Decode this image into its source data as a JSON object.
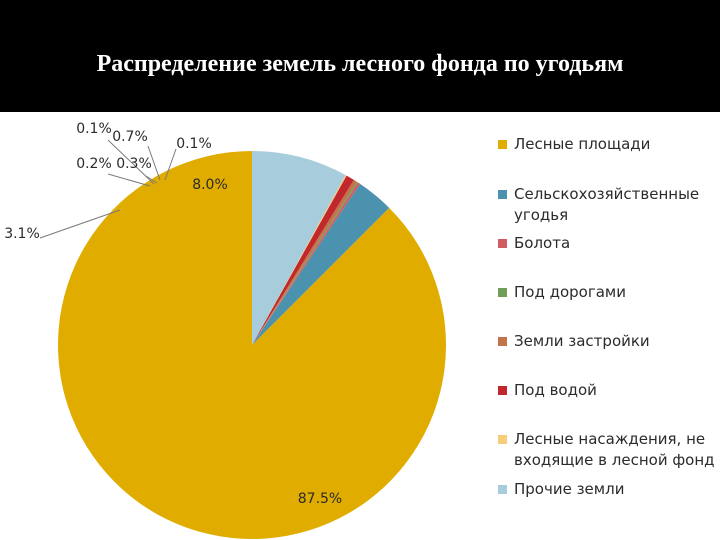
{
  "title": "Распределение земель лесного фонда по угодьям",
  "chart_data": {
    "type": "pie",
    "title": "Распределение земель лесного фонда по угодьям",
    "legend_position": "right",
    "start_angle_deg": 0,
    "direction": "clockwise",
    "slices": [
      {
        "label": "Лесные площади",
        "value": 87.5,
        "display": "87.5%",
        "color": "#E0AC00"
      },
      {
        "label": "Сельскохозяйственные угодья",
        "value": 3.1,
        "display": "3.1%",
        "color": "#4A92AD"
      },
      {
        "label": "Болота",
        "value": 0.2,
        "display": "0.2%",
        "color": "#D25C63"
      },
      {
        "label": "Под дорогами",
        "value": 0.1,
        "display": "0.1%",
        "color": "#6E9E57"
      },
      {
        "label": "Земли застройки",
        "value": 0.3,
        "display": "0.3%",
        "color": "#C2734A"
      },
      {
        "label": "Под водой",
        "value": 0.7,
        "display": "0.7%",
        "color": "#C0282D"
      },
      {
        "label": "Лесные насаждения, не входящие в лесной фонд",
        "value": 0.1,
        "display": "0.1%",
        "color": "#F6CD7A"
      },
      {
        "label": "Прочие земли",
        "value": 8.0,
        "display": "8.0%",
        "color": "#A7CCDB"
      }
    ]
  },
  "legend": [
    "Лесные площади",
    "Сельскохозяйственные угодья",
    "Болота",
    "Под дорогами",
    "Земли застройки",
    "Под водой",
    "Лесные насаждения, не входящие в лесной фонд",
    "Прочие земли"
  ]
}
